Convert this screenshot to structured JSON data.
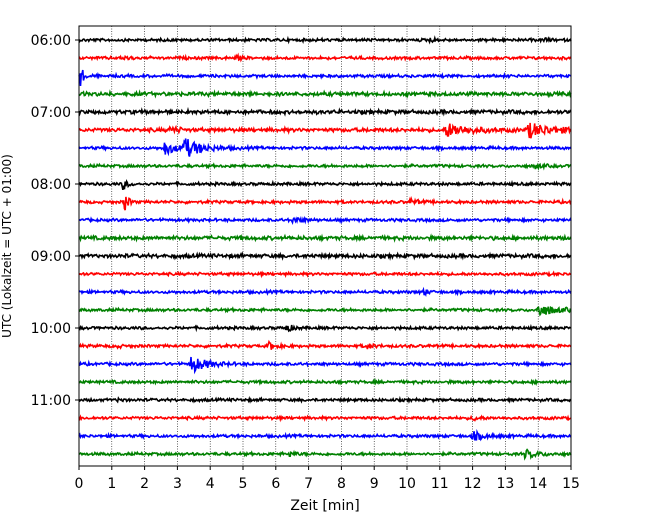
{
  "chart_data": {
    "type": "line",
    "title": "",
    "xlabel": "Zeit  [min]",
    "ylabel": "UTC (Lokalzeit = UTC + 01:00)",
    "xlim": [
      0,
      15
    ],
    "xticks": [
      0,
      1,
      2,
      3,
      4,
      5,
      6,
      7,
      8,
      9,
      10,
      11,
      12,
      13,
      14,
      15
    ],
    "x_grid": true,
    "y_grid": false,
    "start_time": "06:00",
    "trace_interval_min": 15,
    "yticks": [
      "06:00",
      "07:00",
      "08:00",
      "09:00",
      "10:00",
      "11:00"
    ],
    "color_cycle": [
      "#000000",
      "#ff0000",
      "#0000ff",
      "#008000"
    ],
    "traces": [
      {
        "time": "06:00",
        "color": "#000000",
        "amplitude": 0.3,
        "events": [
          {
            "t": 10.7,
            "amp": 0.6,
            "dur": 0.2
          },
          {
            "t": 14.2,
            "amp": 0.5,
            "dur": 0.2
          }
        ]
      },
      {
        "time": "06:15",
        "color": "#ff0000",
        "amplitude": 0.3,
        "events": [
          {
            "t": 1.4,
            "amp": 0.6,
            "dur": 0.2
          },
          {
            "t": 4.8,
            "amp": 0.5,
            "dur": 0.3
          }
        ]
      },
      {
        "time": "06:30",
        "color": "#0000ff",
        "amplitude": 0.3,
        "events": [
          {
            "t": 0.05,
            "amp": 2.5,
            "dur": 0.15
          }
        ]
      },
      {
        "time": "06:45",
        "color": "#008000",
        "amplitude": 0.4,
        "events": []
      },
      {
        "time": "07:00",
        "color": "#000000",
        "amplitude": 0.4,
        "events": []
      },
      {
        "time": "07:15",
        "color": "#ff0000",
        "amplitude": 0.4,
        "events": [
          {
            "t": 2.8,
            "amp": 0.9,
            "dur": 0.3
          },
          {
            "t": 11.2,
            "amp": 1.7,
            "dur": 1.0
          },
          {
            "t": 13.7,
            "amp": 1.8,
            "dur": 1.0
          }
        ]
      },
      {
        "time": "07:30",
        "color": "#0000ff",
        "amplitude": 0.3,
        "events": [
          {
            "t": 2.6,
            "amp": 1.8,
            "dur": 0.5
          },
          {
            "t": 3.2,
            "amp": 2.4,
            "dur": 0.8
          }
        ]
      },
      {
        "time": "07:45",
        "color": "#008000",
        "amplitude": 0.3,
        "events": [
          {
            "t": 13.9,
            "amp": 0.6,
            "dur": 0.3
          }
        ]
      },
      {
        "time": "08:00",
        "color": "#000000",
        "amplitude": 0.3,
        "events": [
          {
            "t": 1.35,
            "amp": 1.5,
            "dur": 0.2
          }
        ]
      },
      {
        "time": "08:15",
        "color": "#ff0000",
        "amplitude": 0.3,
        "events": [
          {
            "t": 1.4,
            "amp": 2.8,
            "dur": 0.15
          },
          {
            "t": 10.1,
            "amp": 0.6,
            "dur": 0.4
          }
        ]
      },
      {
        "time": "08:30",
        "color": "#0000ff",
        "amplitude": 0.3,
        "events": [
          {
            "t": 6.5,
            "amp": 0.6,
            "dur": 0.5
          }
        ]
      },
      {
        "time": "08:45",
        "color": "#008000",
        "amplitude": 0.4,
        "events": []
      },
      {
        "time": "09:00",
        "color": "#000000",
        "amplitude": 0.4,
        "events": []
      },
      {
        "time": "09:15",
        "color": "#ff0000",
        "amplitude": 0.3,
        "events": []
      },
      {
        "time": "09:30",
        "color": "#0000ff",
        "amplitude": 0.3,
        "events": [
          {
            "t": 10.5,
            "amp": 0.8,
            "dur": 0.2
          }
        ]
      },
      {
        "time": "09:45",
        "color": "#008000",
        "amplitude": 0.3,
        "events": [
          {
            "t": 14.0,
            "amp": 1.5,
            "dur": 0.8
          }
        ]
      },
      {
        "time": "10:00",
        "color": "#000000",
        "amplitude": 0.3,
        "events": [
          {
            "t": 6.3,
            "amp": 1.0,
            "dur": 0.3
          }
        ]
      },
      {
        "time": "10:15",
        "color": "#ff0000",
        "amplitude": 0.3,
        "events": [
          {
            "t": 1.1,
            "amp": 0.5,
            "dur": 0.2
          },
          {
            "t": 5.8,
            "amp": 1.0,
            "dur": 0.3
          },
          {
            "t": 8.8,
            "amp": 0.7,
            "dur": 0.3
          }
        ]
      },
      {
        "time": "10:30",
        "color": "#0000ff",
        "amplitude": 0.3,
        "events": [
          {
            "t": 3.4,
            "amp": 2.2,
            "dur": 0.7
          }
        ]
      },
      {
        "time": "10:45",
        "color": "#008000",
        "amplitude": 0.3,
        "events": []
      },
      {
        "time": "11:00",
        "color": "#000000",
        "amplitude": 0.3,
        "events": [
          {
            "t": 1.2,
            "amp": 0.4,
            "dur": 0.2
          }
        ]
      },
      {
        "time": "11:15",
        "color": "#ff0000",
        "amplitude": 0.3,
        "events": [
          {
            "t": 12.0,
            "amp": 0.6,
            "dur": 0.3
          }
        ]
      },
      {
        "time": "11:30",
        "color": "#0000ff",
        "amplitude": 0.3,
        "events": [
          {
            "t": 12.0,
            "amp": 1.0,
            "dur": 0.6
          }
        ]
      },
      {
        "time": "11:45",
        "color": "#008000",
        "amplitude": 0.3,
        "events": [
          {
            "t": 6.4,
            "amp": 0.6,
            "dur": 0.3
          },
          {
            "t": 13.6,
            "amp": 1.0,
            "dur": 0.6
          }
        ]
      }
    ]
  }
}
